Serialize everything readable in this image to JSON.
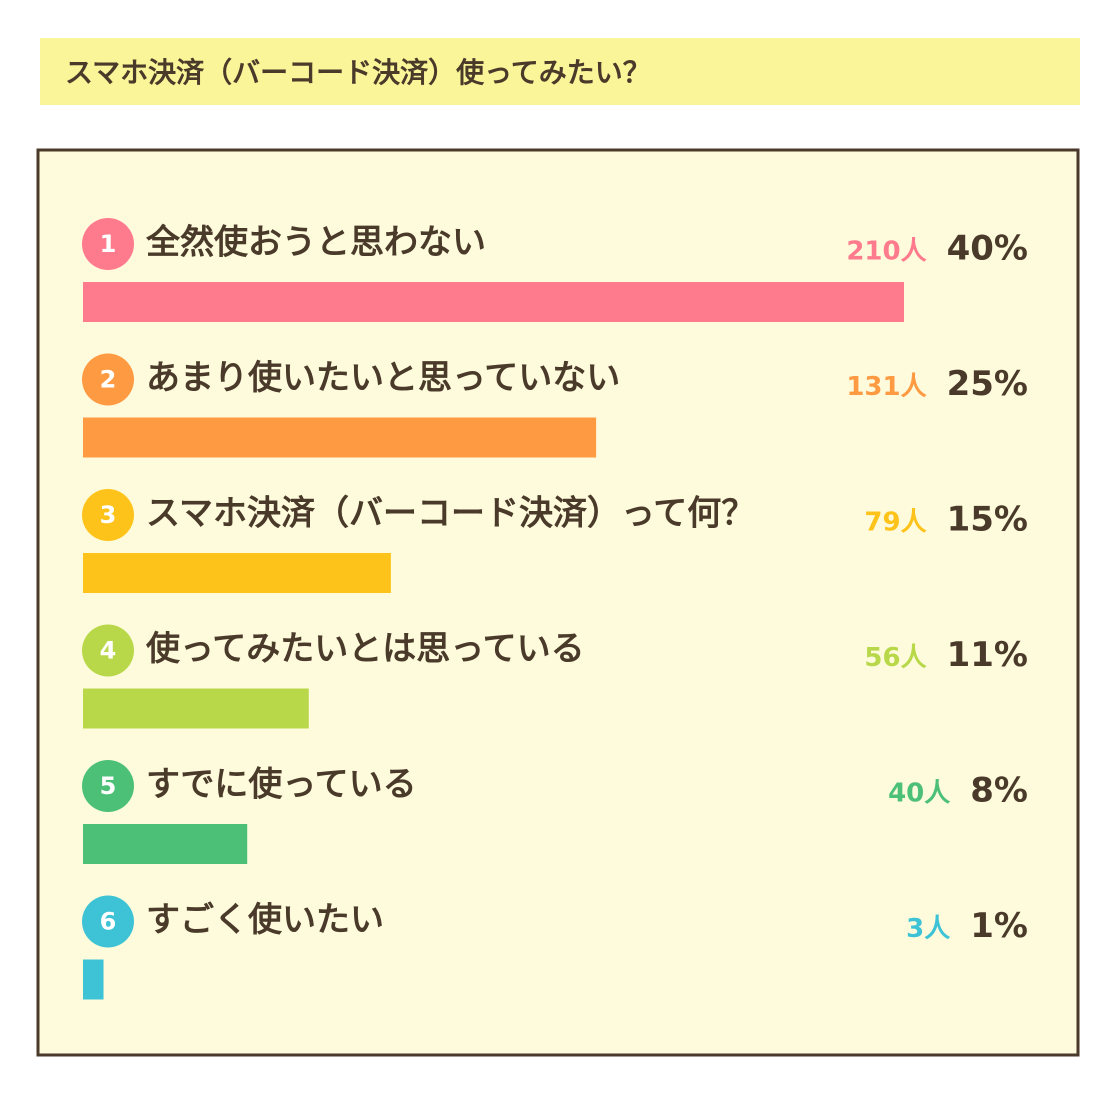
{
  "chart_data": {
    "type": "bar",
    "orientation": "horizontal",
    "title": "スマホ決済（バーコード決済）使ってみたい？",
    "ranks": [
      1,
      2,
      3,
      4,
      5,
      6
    ],
    "categories": [
      "全然使おうと思わない",
      "あまり使いたいと思っていない",
      "スマホ決済（バーコード決済）って何？",
      "使ってみたいとは思っている",
      "すでに使っている",
      "すごく使いたい"
    ],
    "values": [
      40,
      25,
      15,
      11,
      8,
      1
    ],
    "value_labels": [
      "40%",
      "25%",
      "15%",
      "11%",
      "8%",
      "1%"
    ],
    "count_labels": [
      "210人",
      "131人",
      "79人",
      "56人",
      "40人",
      "3人"
    ],
    "colors": [
      "#fe7a8d",
      "#fe9a42",
      "#fec31a",
      "#b8d84a",
      "#4dc077",
      "#3ec3d6"
    ]
  }
}
